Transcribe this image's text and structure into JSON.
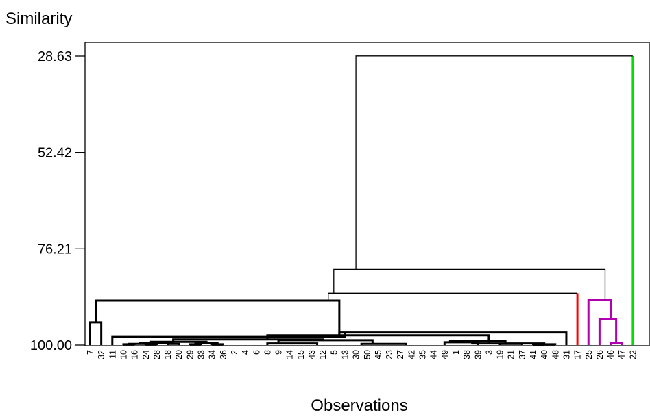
{
  "chart_data": {
    "type": "dendrogram",
    "ylabel": "Similarity",
    "xlabel": "Observations",
    "yticks": [
      "28.63",
      "52.42",
      "76.21",
      "100.00"
    ],
    "ylim": [
      100.0,
      28.63
    ],
    "leaf_order": [
      "7",
      "32",
      "11",
      "10",
      "16",
      "24",
      "28",
      "18",
      "20",
      "29",
      "33",
      "34",
      "36",
      "2",
      "4",
      "6",
      "8",
      "9",
      "14",
      "15",
      "43",
      "12",
      "5",
      "13",
      "30",
      "50",
      "45",
      "23",
      "27",
      "42",
      "35",
      "44",
      "49",
      "1",
      "38",
      "39",
      "3",
      "19",
      "21",
      "37",
      "41",
      "40",
      "48",
      "31",
      "17",
      "25",
      "26",
      "46",
      "47",
      "22"
    ],
    "colors": {
      "black": "#000000",
      "red": "#ff0000",
      "magenta": "#b000b0",
      "green": "#00e000"
    },
    "bold_cluster_color": "#000000",
    "links": [
      {
        "a": [
          "7"
        ],
        "b": [
          "32"
        ],
        "sim": 94.4,
        "color": "black",
        "bold": true
      },
      {
        "a": [
          "10"
        ],
        "b": [
          "16"
        ],
        "sim": 99.8,
        "color": "black",
        "bold": true
      },
      {
        "a": [
          "24"
        ],
        "b": [
          "28"
        ],
        "sim": 99.8,
        "color": "black",
        "bold": true
      },
      {
        "a": [
          "18"
        ],
        "b": [
          "20"
        ],
        "sim": 99.7,
        "color": "black",
        "bold": true
      },
      {
        "a": [
          "10",
          "16"
        ],
        "b": [
          "24",
          "28"
        ],
        "sim": 99.7,
        "color": "black",
        "bold": true
      },
      {
        "a": [
          "10",
          "16",
          "24",
          "28"
        ],
        "b": [
          "18",
          "20"
        ],
        "sim": 99.4,
        "color": "black",
        "bold": true
      },
      {
        "a": [
          "29"
        ],
        "b": [
          "33"
        ],
        "sim": 99.8,
        "color": "black",
        "bold": true
      },
      {
        "a": [
          "34"
        ],
        "b": [
          "36"
        ],
        "sim": 99.8,
        "color": "black",
        "bold": true
      },
      {
        "a": [
          "29",
          "33"
        ],
        "b": [
          "34",
          "36"
        ],
        "sim": 99.5,
        "color": "black",
        "bold": true
      },
      {
        "a": [
          "10",
          "16",
          "24",
          "28",
          "18",
          "20"
        ],
        "b": [
          "29",
          "33",
          "34",
          "36"
        ],
        "sim": 99.2,
        "color": "black",
        "bold": true
      },
      {
        "a": [
          "2",
          "4",
          "6",
          "8",
          "9",
          "14",
          "15"
        ],
        "b": [
          "43",
          "12"
        ],
        "sim": 99.6,
        "color": "black",
        "bold": true
      },
      {
        "a": [
          "5",
          "13",
          "30",
          "50",
          "45",
          "23"
        ],
        "b": [
          "27",
          "42"
        ],
        "sim": 99.7,
        "color": "black",
        "bold": true
      },
      {
        "a": [
          "2",
          "4",
          "6",
          "8",
          "9",
          "14",
          "15",
          "43",
          "12"
        ],
        "b": [
          "5",
          "13",
          "30",
          "50",
          "45",
          "23",
          "27",
          "42"
        ],
        "sim": 98.8,
        "color": "black",
        "bold": true
      },
      {
        "a": [
          "10",
          "16",
          "24",
          "28",
          "18",
          "20",
          "29",
          "33",
          "34",
          "36"
        ],
        "b": [
          "2",
          "4",
          "6",
          "8",
          "9",
          "14",
          "15",
          "43",
          "12",
          "5",
          "13",
          "30",
          "50",
          "45",
          "23",
          "27",
          "42"
        ],
        "sim": 98.6,
        "color": "black",
        "bold": true
      },
      {
        "a": [
          "35",
          "44",
          "49",
          "1",
          "38"
        ],
        "b": [
          "39"
        ],
        "sim": 99.3,
        "color": "black",
        "bold": true
      },
      {
        "a": [
          "3",
          "19",
          "21"
        ],
        "b": [
          "37"
        ],
        "sim": 99.7,
        "color": "black",
        "bold": true
      },
      {
        "a": [
          "35",
          "44",
          "49",
          "1",
          "38",
          "39"
        ],
        "b": [
          "3",
          "19",
          "21",
          "37"
        ],
        "sim": 99.0,
        "color": "black",
        "bold": true
      },
      {
        "a": [
          "41"
        ],
        "b": [
          "40"
        ],
        "sim": 99.9,
        "color": "black",
        "bold": true
      },
      {
        "a": [
          "41",
          "40"
        ],
        "b": [
          "48"
        ],
        "sim": 99.8,
        "color": "black",
        "bold": true
      },
      {
        "a": [
          "35",
          "44",
          "49",
          "1",
          "38",
          "39",
          "3",
          "19",
          "21",
          "37"
        ],
        "b": [
          "41",
          "40",
          "48"
        ],
        "sim": 99.6,
        "color": "black",
        "bold": true
      },
      {
        "a": [
          "10",
          "16",
          "24",
          "28",
          "18",
          "20",
          "29",
          "33",
          "34",
          "36",
          "2",
          "4",
          "6",
          "8",
          "9",
          "14",
          "15",
          "43",
          "12",
          "5",
          "13",
          "30",
          "50",
          "45",
          "23",
          "27",
          "42"
        ],
        "b": [
          "35",
          "44",
          "49",
          "1",
          "38",
          "39",
          "3",
          "19",
          "21",
          "37",
          "41",
          "40",
          "48"
        ],
        "sim": 97.6,
        "color": "black",
        "bold": true
      },
      {
        "a": [
          "10",
          "16",
          "24",
          "28",
          "18",
          "20",
          "29",
          "33",
          "34",
          "36",
          "2",
          "4",
          "6",
          "8",
          "9",
          "14",
          "15",
          "43",
          "12",
          "5",
          "13",
          "30",
          "50",
          "45",
          "23",
          "27",
          "42",
          "35",
          "44",
          "49",
          "1",
          "38",
          "39",
          "3",
          "19",
          "21",
          "37",
          "41",
          "40",
          "48"
        ],
        "b": [
          "31"
        ],
        "sim": 96.9,
        "color": "black",
        "bold": true
      },
      {
        "a": [
          "11"
        ],
        "b": [
          "10",
          "16",
          "24",
          "28",
          "18",
          "20",
          "29",
          "33",
          "34",
          "36",
          "2",
          "4",
          "6",
          "8",
          "9",
          "14",
          "15",
          "43",
          "12",
          "5",
          "13",
          "30",
          "50",
          "45",
          "23",
          "27",
          "42",
          "35",
          "44",
          "49",
          "1",
          "38",
          "39",
          "3",
          "19",
          "21",
          "37",
          "41",
          "40",
          "48",
          "31"
        ],
        "sim": 98.0,
        "color": "black",
        "bold": true
      },
      {
        "a": [
          "7",
          "32"
        ],
        "b": [
          "11",
          "10",
          "16",
          "24",
          "28",
          "18",
          "20",
          "29",
          "33",
          "34",
          "36",
          "2",
          "4",
          "6",
          "8",
          "9",
          "14",
          "15",
          "43",
          "12",
          "5",
          "13",
          "30",
          "50",
          "45",
          "23",
          "27",
          "42",
          "35",
          "44",
          "49",
          "1",
          "38",
          "39",
          "3",
          "19",
          "21",
          "37",
          "41",
          "40",
          "48",
          "31"
        ],
        "sim": 89.0,
        "color": "black",
        "bold": true
      },
      {
        "a": [
          "7",
          "32",
          "11",
          "10",
          "16",
          "24",
          "28",
          "18",
          "20",
          "29",
          "33",
          "34",
          "36",
          "2",
          "4",
          "6",
          "8",
          "9",
          "14",
          "15",
          "43",
          "12",
          "5",
          "13",
          "30",
          "50",
          "45",
          "23",
          "27",
          "42",
          "35",
          "44",
          "49",
          "1",
          "38",
          "39",
          "3",
          "19",
          "21",
          "37",
          "41",
          "40",
          "48",
          "31"
        ],
        "b": [
          "17"
        ],
        "sim": 87.2,
        "color": "black",
        "bold": false
      },
      {
        "a": [
          "46"
        ],
        "b": [
          "47"
        ],
        "sim": 99.4,
        "color": "magenta",
        "bold": true
      },
      {
        "a": [
          "26"
        ],
        "b": [
          "46",
          "47"
        ],
        "sim": 93.6,
        "color": "magenta",
        "bold": true
      },
      {
        "a": [
          "25"
        ],
        "b": [
          "26",
          "46",
          "47"
        ],
        "sim": 88.9,
        "color": "magenta",
        "bold": true
      },
      {
        "a": [
          "7",
          "32",
          "11",
          "10",
          "16",
          "24",
          "28",
          "18",
          "20",
          "29",
          "33",
          "34",
          "36",
          "2",
          "4",
          "6",
          "8",
          "9",
          "14",
          "15",
          "43",
          "12",
          "5",
          "13",
          "30",
          "50",
          "45",
          "23",
          "27",
          "42",
          "35",
          "44",
          "49",
          "1",
          "38",
          "39",
          "3",
          "19",
          "21",
          "37",
          "41",
          "40",
          "48",
          "31",
          "17"
        ],
        "b": [
          "25",
          "26",
          "46",
          "47"
        ],
        "sim": 81.3,
        "color": "black",
        "bold": false
      },
      {
        "a": [
          "7",
          "32",
          "11",
          "10",
          "16",
          "24",
          "28",
          "18",
          "20",
          "29",
          "33",
          "34",
          "36",
          "2",
          "4",
          "6",
          "8",
          "9",
          "14",
          "15",
          "43",
          "12",
          "5",
          "13",
          "30",
          "50",
          "45",
          "23",
          "27",
          "42",
          "35",
          "44",
          "49",
          "1",
          "38",
          "39",
          "3",
          "19",
          "21",
          "37",
          "41",
          "40",
          "48",
          "31",
          "17",
          "25",
          "26",
          "46",
          "47"
        ],
        "b": [
          "22"
        ],
        "sim": 28.6,
        "color": "black",
        "bold": false
      }
    ],
    "leaf_colors": {
      "17": "red",
      "22": "green"
    }
  }
}
